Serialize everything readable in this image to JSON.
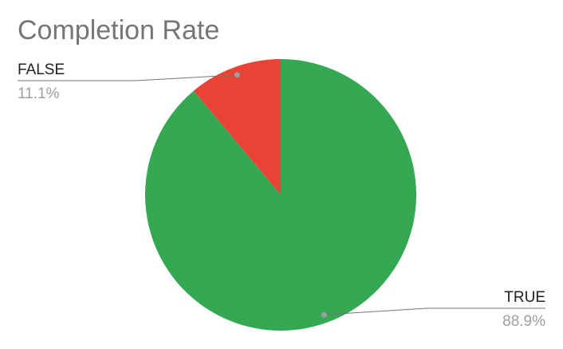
{
  "chart_data": {
    "type": "pie",
    "title": "Completion Rate",
    "categories": [
      "TRUE",
      "FALSE"
    ],
    "values": [
      88.9,
      11.1
    ],
    "value_labels": [
      "88.9%",
      "11.1%"
    ],
    "colors": [
      "#34a853",
      "#ea4335"
    ]
  }
}
